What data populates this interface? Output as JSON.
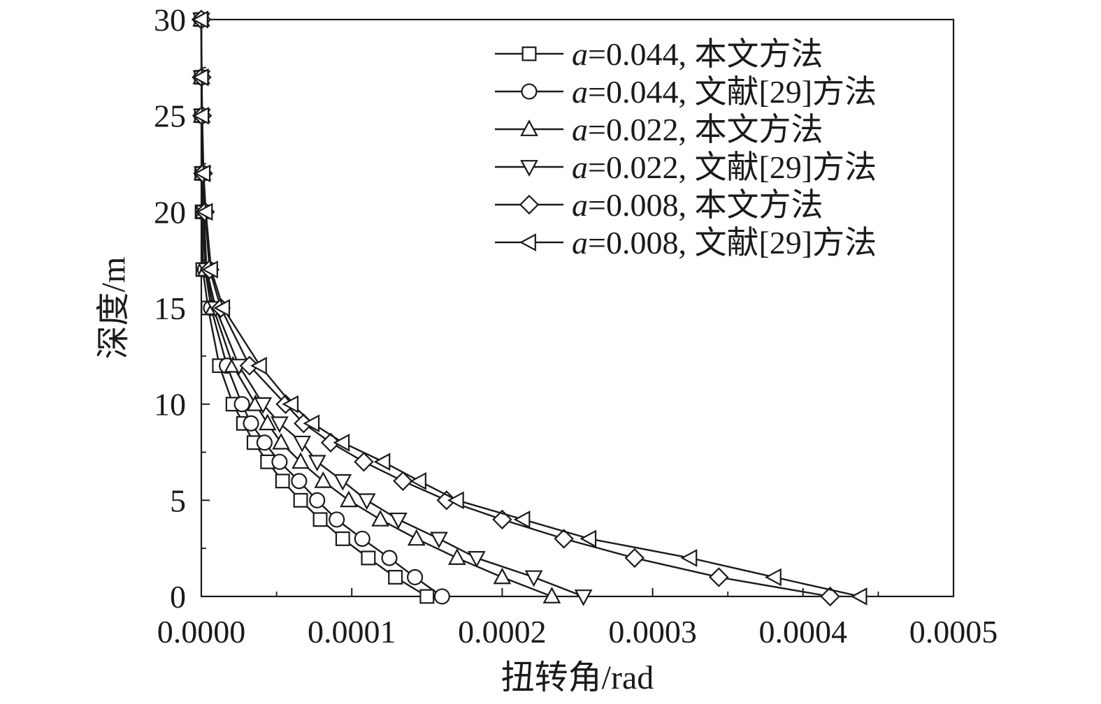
{
  "chart_data": {
    "type": "line",
    "xlabel": "扭转角/rad",
    "ylabel": "深度/m",
    "xlim": [
      0,
      0.0005
    ],
    "ylim": [
      0,
      30
    ],
    "x_ticks": [
      "0.0000",
      "0.0001",
      "0.0002",
      "0.0003",
      "0.0004",
      "0.0005"
    ],
    "y_ticks": [
      "0",
      "5",
      "10",
      "15",
      "20",
      "25",
      "30"
    ],
    "legend_position": "top-right",
    "series": [
      {
        "name": "a=0.044, 本文方法",
        "legend": {
          "var": "a",
          "rest": "=0.044, 本文方法"
        },
        "marker": "square",
        "points": [
          [
            0.00015,
            0
          ],
          [
            0.000129,
            1
          ],
          [
            0.000111,
            2
          ],
          [
            9.4e-05,
            3
          ],
          [
            7.9e-05,
            4
          ],
          [
            6.6e-05,
            5
          ],
          [
            5.4e-05,
            6
          ],
          [
            4.4e-05,
            7
          ],
          [
            3.5e-05,
            8
          ],
          [
            2.8e-05,
            9
          ],
          [
            2.1e-05,
            10
          ],
          [
            1.2e-05,
            12
          ],
          [
            4.5e-06,
            15
          ],
          [
            1e-06,
            17
          ],
          [
            5e-07,
            20
          ],
          [
            3e-07,
            22
          ],
          [
            1e-07,
            25
          ],
          [
            1e-07,
            27
          ],
          [
            0,
            30
          ]
        ]
      },
      {
        "name": "a=0.044, 文献[29]方法",
        "legend": {
          "var": "a",
          "rest": "=0.044, 文献[29]方法"
        },
        "marker": "circle",
        "points": [
          [
            0.00016,
            0
          ],
          [
            0.000142,
            1
          ],
          [
            0.000125,
            2
          ],
          [
            0.000107,
            3
          ],
          [
            9e-05,
            4
          ],
          [
            7.7e-05,
            5
          ],
          [
            6.5e-05,
            6
          ],
          [
            5.2e-05,
            7
          ],
          [
            4.2e-05,
            8
          ],
          [
            3.3e-05,
            9
          ],
          [
            2.7e-05,
            10
          ],
          [
            1.7e-05,
            12
          ],
          [
            6.5e-06,
            15
          ],
          [
            2.5e-06,
            17
          ],
          [
            1e-06,
            20
          ],
          [
            5e-07,
            22
          ],
          [
            2e-07,
            25
          ],
          [
            1e-07,
            27
          ],
          [
            0,
            30
          ]
        ]
      },
      {
        "name": "a=0.022, 本文方法",
        "legend": {
          "var": "a",
          "rest": "=0.022, 本文方法"
        },
        "marker": "triangle-up",
        "points": [
          [
            0.000233,
            0
          ],
          [
            0.0002,
            1
          ],
          [
            0.00017,
            2
          ],
          [
            0.000143,
            3
          ],
          [
            0.000119,
            4
          ],
          [
            9.8e-05,
            5
          ],
          [
            8.1e-05,
            6
          ],
          [
            6.6e-05,
            7
          ],
          [
            5.3e-05,
            8
          ],
          [
            4.4e-05,
            9
          ],
          [
            3.6e-05,
            10
          ],
          [
            2.1e-05,
            12
          ],
          [
            8e-06,
            15
          ],
          [
            3e-06,
            17
          ],
          [
            1.5e-06,
            20
          ],
          [
            7e-07,
            22
          ],
          [
            3e-07,
            25
          ],
          [
            1e-07,
            27
          ],
          [
            0,
            30
          ]
        ]
      },
      {
        "name": "a=0.022, 文献[29]方法",
        "legend": {
          "var": "a",
          "rest": "=0.022, 文献[29]方法"
        },
        "marker": "triangle-down",
        "points": [
          [
            0.000254,
            0
          ],
          [
            0.000221,
            1
          ],
          [
            0.000183,
            2
          ],
          [
            0.000158,
            3
          ],
          [
            0.000131,
            4
          ],
          [
            0.00011,
            5
          ],
          [
            9.4e-05,
            6
          ],
          [
            7.7e-05,
            7
          ],
          [
            6.7e-05,
            8
          ],
          [
            5.2e-05,
            9
          ],
          [
            4.1e-05,
            10
          ],
          [
            2.5e-05,
            12
          ],
          [
            9.5e-06,
            15
          ],
          [
            3.5e-06,
            17
          ],
          [
            1.7e-06,
            20
          ],
          [
            8e-07,
            22
          ],
          [
            4e-07,
            25
          ],
          [
            2e-07,
            27
          ],
          [
            0,
            30
          ]
        ]
      },
      {
        "name": "a=0.008, 本文方法",
        "legend": {
          "var": "a",
          "rest": "=0.008, 本文方法"
        },
        "marker": "diamond",
        "points": [
          [
            0.000418,
            0
          ],
          [
            0.000344,
            1
          ],
          [
            0.000288,
            2
          ],
          [
            0.000241,
            3
          ],
          [
            0.0002,
            4
          ],
          [
            0.000163,
            5
          ],
          [
            0.000134,
            6
          ],
          [
            0.000108,
            7
          ],
          [
            8.6e-05,
            8
          ],
          [
            6.8e-05,
            9
          ],
          [
            5.6e-05,
            10
          ],
          [
            3.2e-05,
            12
          ],
          [
            1.3e-05,
            15
          ],
          [
            5.5e-06,
            17
          ],
          [
            2.5e-06,
            20
          ],
          [
            1.2e-06,
            22
          ],
          [
            5e-07,
            25
          ],
          [
            2e-07,
            27
          ],
          [
            0,
            30
          ]
        ]
      },
      {
        "name": "a=0.008, 文献[29]方法",
        "legend": {
          "var": "a",
          "rest": "=0.008, 文献[29]方法"
        },
        "marker": "triangle-left",
        "points": [
          [
            0.000438,
            0
          ],
          [
            0.000381,
            1
          ],
          [
            0.000325,
            2
          ],
          [
            0.000258,
            3
          ],
          [
            0.000214,
            4
          ],
          [
            0.00017,
            5
          ],
          [
            0.000145,
            6
          ],
          [
            0.000121,
            7
          ],
          [
            9.4e-05,
            8
          ],
          [
            7.4e-05,
            9
          ],
          [
            6e-05,
            10
          ],
          [
            3.9e-05,
            12
          ],
          [
            1.45e-05,
            15
          ],
          [
            6.5e-06,
            17
          ],
          [
            3e-06,
            20
          ],
          [
            1.5e-06,
            22
          ],
          [
            6e-07,
            25
          ],
          [
            3e-07,
            27
          ],
          [
            0,
            30
          ]
        ]
      }
    ]
  }
}
